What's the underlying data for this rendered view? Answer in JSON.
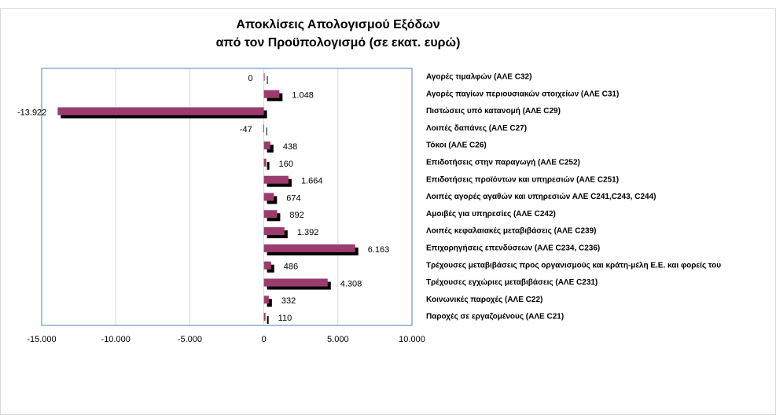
{
  "chart_data": {
    "type": "bar",
    "orientation": "horizontal",
    "title": [
      "Αποκλίσεις Απολογισμού Εξόδων",
      "από τον Προϋπολογισμό (σε εκατ. ευρώ)"
    ],
    "categories": [
      "Αγορές τιμαλφών (ΑΛΕ C32)",
      "Αγορές παγίων περιουσιακών στοιχείων (ΑΛΕ C31)",
      "Πιστώσεις υπό κατανομή (ΑΛΕ C29)",
      "Λοιπές δαπάνες (ΑΛΕ C27)",
      "Τόκοι (ΑΛΕ C26)",
      "Επιδοτήσεις στην παραγωγή (ΑΛΕ C252)",
      "Επιδοτήσεις προϊόντων και υπηρεσιών (ΑΛΕ C251)",
      "Λοιπές αγορές αγαθών και υπηρεσιών ΑΛΕ C241,C243, C244)",
      "Αμοιβές για υπηρεσίες (ΑΛΕ C242)",
      "Λοιπές κεφαλαιακές μεταβιβάσεις (ΑΛΕ C239)",
      "Επιχορηγήσεις επενδύσεων (ΑΛΕ C234, C236)",
      "Τρέχουσες μεταβιβάσεις προς οργανισμούς και κράτη-μέλη Ε.Ε. και φορείς του",
      "Τρέχουσες εγχώριες μεταβιβάσεις (ΑΛΕ C231)",
      "Κοινωνικές παροχές (ΑΛΕ C22)",
      "Παροχές σε εργαζομένους (ΑΛΕ C21)"
    ],
    "values": [
      0,
      1048,
      -13922,
      -47,
      438,
      160,
      1664,
      674,
      892,
      1392,
      6163,
      486,
      4308,
      332,
      110
    ],
    "value_labels": [
      "0",
      "1.048",
      "-13.922",
      "-47",
      "438",
      "160",
      "1.664",
      "674",
      "892",
      "1.392",
      "6.163",
      "486",
      "4.308",
      "332",
      "110"
    ],
    "color": "#9b3b6e",
    "shadow_color": "#000000",
    "xlim": [
      -15000,
      10000
    ],
    "xticks": [
      {
        "value": -15000,
        "label": "-15.000"
      },
      {
        "value": -10000,
        "label": "-10.000"
      },
      {
        "value": -5000,
        "label": "-5.000"
      },
      0,
      {
        "value": 5000,
        "label": "5.000"
      },
      {
        "value": 10000,
        "label": "10.000"
      }
    ],
    "grid": true
  }
}
